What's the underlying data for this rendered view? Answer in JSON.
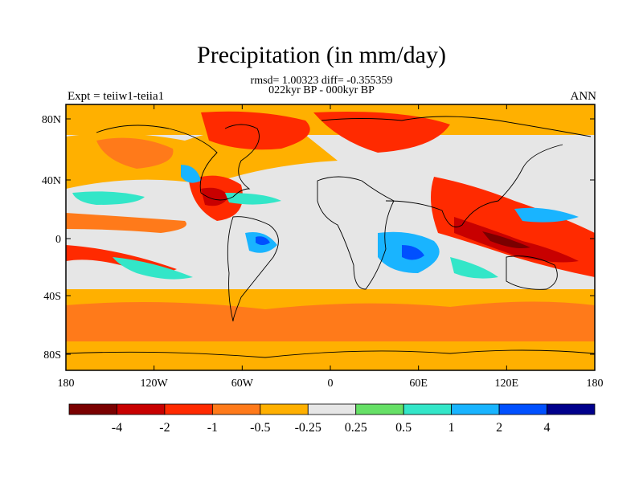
{
  "title": "Precipitation (in mm/day)",
  "subtitle": "rmsd= 1.00323 diff= -0.355359",
  "subtitle2": "022kyr BP - 000kyr BP",
  "left_label": "Expt = teiiw1-teiia1",
  "right_label": "ANN",
  "lat_ticks": [
    "80N",
    "40N",
    "0",
    "40S",
    "80S"
  ],
  "lon_ticks": [
    "180",
    "120W",
    "60W",
    "0",
    "60E",
    "120E",
    "180"
  ],
  "colorbar": {
    "labels": [
      "-4",
      "-2",
      "-1",
      "-0.5",
      "-0.25",
      "0.25",
      "0.5",
      "1",
      "2",
      "4"
    ],
    "colors": [
      "#7a0000",
      "#c80000",
      "#ff2a00",
      "#ff7a1a",
      "#ffb000",
      "#e6e6e6",
      "#66e066",
      "#33e6c8",
      "#19b4ff",
      "#0050ff",
      "#00008c"
    ]
  },
  "colors": {
    "ocean_neutral": "#e6e6e6",
    "dry_light": "#ffb000",
    "dry_medium": "#ff7a1a",
    "dry_strong": "#ff2a00",
    "dry_very_strong": "#c80000",
    "dry_extreme": "#7a0000",
    "wet_light": "#66e066",
    "wet_medium": "#33e6c8",
    "wet_strong": "#19b4ff",
    "wet_very_strong": "#0050ff"
  }
}
